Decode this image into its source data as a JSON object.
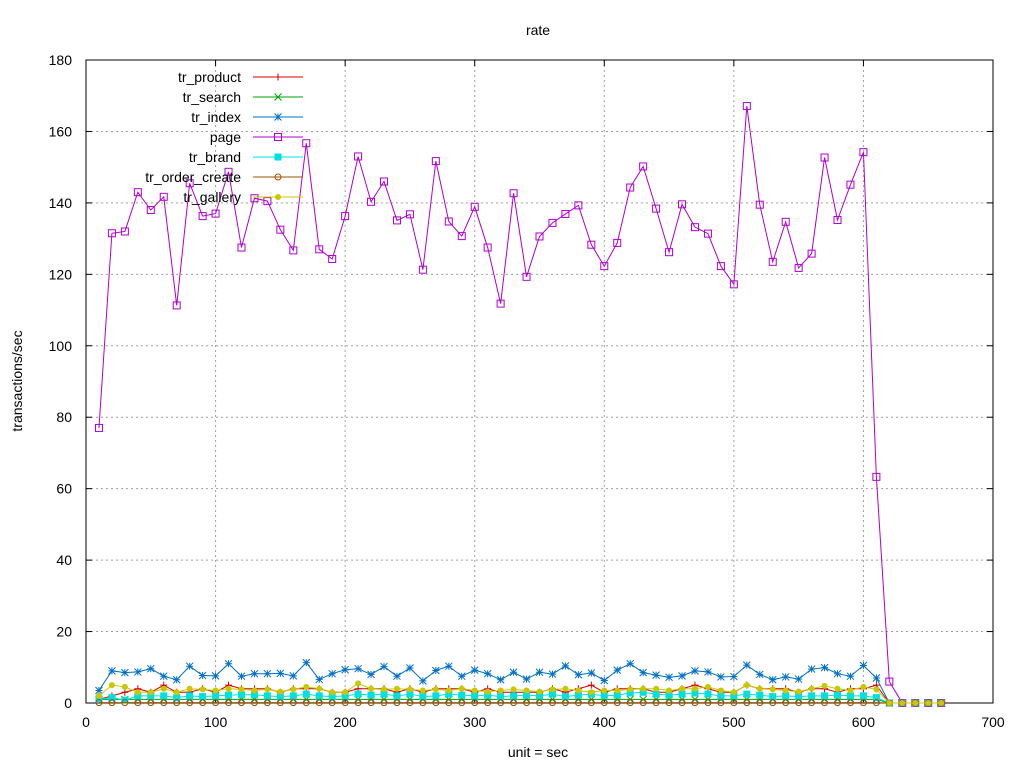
{
  "chart_data": {
    "type": "line",
    "title": "rate",
    "xlabel": "unit = sec",
    "ylabel": "transactions/sec",
    "xlim": [
      0,
      700
    ],
    "ylim": [
      0,
      180
    ],
    "xticks": [
      0,
      100,
      200,
      300,
      400,
      500,
      600,
      700
    ],
    "yticks": [
      0,
      20,
      40,
      60,
      80,
      100,
      120,
      140,
      160,
      180
    ],
    "grid": true,
    "legend_position": "top-left",
    "x": [
      10,
      20,
      30,
      40,
      50,
      60,
      70,
      80,
      90,
      100,
      110,
      120,
      130,
      140,
      150,
      160,
      170,
      180,
      190,
      200,
      210,
      220,
      230,
      240,
      250,
      260,
      270,
      280,
      290,
      300,
      310,
      320,
      330,
      340,
      350,
      360,
      370,
      380,
      390,
      400,
      410,
      420,
      430,
      440,
      450,
      460,
      470,
      480,
      490,
      500,
      510,
      520,
      530,
      540,
      550,
      560,
      570,
      580,
      590,
      600,
      610,
      620,
      630,
      640,
      650,
      660
    ],
    "series": [
      {
        "name": "tr_product",
        "color": "#d40000",
        "marker": "plus",
        "values": [
          1,
          2,
          3,
          4,
          3,
          5,
          3,
          3,
          4,
          3,
          5,
          4,
          4,
          4,
          3,
          4,
          4,
          4,
          3,
          3,
          4,
          4,
          4,
          3,
          4,
          3,
          4,
          4,
          4,
          3,
          4,
          3,
          3,
          3,
          3,
          4,
          3,
          4,
          5,
          3,
          4,
          4,
          4,
          3,
          3,
          4,
          5,
          4,
          3,
          3,
          5,
          4,
          4,
          4,
          3,
          4,
          4,
          3,
          4,
          4,
          5,
          0,
          0,
          0,
          0,
          0
        ]
      },
      {
        "name": "tr_search",
        "color": "#00a000",
        "marker": "cross",
        "values": [
          1,
          1,
          1,
          1,
          1,
          1,
          1,
          1,
          1,
          1,
          1,
          1,
          1,
          1,
          1,
          1,
          1,
          1,
          1,
          1,
          1,
          1,
          1,
          1,
          1,
          1,
          1,
          1,
          1,
          1,
          1,
          1,
          1,
          1,
          1,
          1,
          1,
          1,
          1,
          1,
          1,
          1,
          1,
          1,
          1,
          1,
          1,
          1,
          1,
          1,
          1,
          1,
          1,
          1,
          1,
          1,
          1,
          1,
          1,
          1,
          1,
          0,
          0,
          0,
          0,
          0
        ]
      },
      {
        "name": "tr_index",
        "color": "#0070c8",
        "marker": "star",
        "values": [
          3.5,
          9,
          8.5,
          8.7,
          9.6,
          7.5,
          6.5,
          10.3,
          7.7,
          7.6,
          11,
          7.5,
          8.2,
          8.2,
          8.3,
          7.6,
          11.3,
          6.6,
          8.2,
          9.3,
          9.6,
          8,
          10.2,
          7.5,
          9.8,
          6.2,
          9.1,
          10.3,
          7.5,
          9.2,
          8.2,
          6.5,
          8.6,
          6.7,
          8.6,
          8.1,
          10.4,
          7.9,
          8.4,
          6.3,
          9.2,
          11,
          8.5,
          7.8,
          7.2,
          7.6,
          9,
          8.7,
          7.3,
          7.4,
          10.6,
          8,
          6.5,
          7.3,
          6.7,
          9.5,
          9.9,
          8.2,
          7.5,
          10.5,
          7,
          0,
          0,
          0,
          0,
          0
        ]
      },
      {
        "name": "page",
        "color": "#b000d0",
        "marker": "square-open",
        "values": [
          77,
          131.5,
          132,
          143,
          138,
          141.7,
          111.3,
          145.5,
          136.3,
          137,
          148.7,
          127.5,
          141.3,
          140.5,
          132.5,
          126.7,
          156.7,
          127,
          124.3,
          136.3,
          153,
          140.3,
          146,
          135.1,
          136.8,
          121.3,
          151.7,
          134.8,
          130.7,
          138.9,
          127.5,
          111.8,
          142.7,
          119.3,
          130.6,
          134.4,
          136.9,
          139.3,
          128.3,
          122.3,
          128.8,
          144.3,
          150.2,
          138.4,
          126.2,
          139.6,
          133.2,
          131.4,
          122.3,
          117.2,
          167.1,
          139.5,
          123.5,
          134.7,
          121.8,
          125.8,
          152.7,
          135.2,
          145.1,
          154.2,
          63.3,
          6,
          0,
          0,
          0,
          0
        ]
      },
      {
        "name": "tr_brand",
        "color": "#00e0e0",
        "marker": "square-filled",
        "values": [
          1,
          1.5,
          0.8,
          2,
          2,
          2,
          1.5,
          2,
          1.8,
          2,
          2.2,
          2.3,
          2.3,
          2,
          1.8,
          2,
          2.5,
          2,
          1.8,
          2,
          2.5,
          2.2,
          2.5,
          2,
          2.5,
          1.8,
          2,
          2.5,
          2.2,
          2,
          2.2,
          1.8,
          2,
          2.2,
          2,
          2.5,
          1.8,
          2.2,
          2.5,
          2,
          2.2,
          2.8,
          3,
          2.5,
          2.2,
          2.5,
          2.8,
          2.5,
          2,
          2,
          2.5,
          2.2,
          1.8,
          2,
          1.8,
          2,
          2,
          2.2,
          2,
          2,
          1.5,
          0,
          0,
          0,
          0,
          0
        ]
      },
      {
        "name": "tr_order_create",
        "color": "#a05000",
        "marker": "circle-open",
        "values": [
          0.1,
          0.1,
          0.1,
          0.1,
          0.1,
          0.1,
          0.1,
          0.1,
          0.1,
          0.1,
          0.1,
          0.1,
          0.1,
          0.1,
          0.1,
          0.1,
          0.1,
          0.1,
          0.1,
          0.1,
          0.1,
          0.1,
          0.1,
          0.1,
          0.1,
          0.1,
          0.1,
          0.1,
          0.1,
          0.1,
          0.1,
          0.1,
          0.1,
          0.1,
          0.1,
          0.1,
          0.1,
          0.1,
          0.1,
          0.1,
          0.1,
          0.1,
          0.1,
          0.1,
          0.1,
          0.1,
          0.1,
          0.1,
          0.1,
          0.1,
          0.1,
          0.1,
          0.1,
          0.1,
          0.1,
          0.1,
          0.1,
          0.1,
          0.1,
          0.1,
          0.1,
          0,
          0,
          0,
          0,
          0
        ]
      },
      {
        "name": "tr_gallery",
        "color": "#c8c800",
        "marker": "circle-filled",
        "values": [
          2,
          5,
          4.5,
          3,
          3,
          4,
          3,
          4,
          3.8,
          3.5,
          4,
          3.8,
          3.5,
          3.8,
          3.2,
          3.8,
          4.5,
          4,
          3,
          3,
          5.5,
          4,
          3.8,
          4,
          3.8,
          3.5,
          3.8,
          3.5,
          4,
          3.5,
          3.2,
          3.5,
          3.8,
          3.5,
          3.2,
          3.8,
          4,
          3.5,
          3,
          3.5,
          3.5,
          3.8,
          4,
          4,
          3.5,
          4,
          4,
          4.5,
          3.5,
          3,
          5,
          4,
          3.8,
          3.5,
          3.2,
          4,
          4.8,
          4,
          3.5,
          4.5,
          3.8,
          0,
          0,
          0,
          0,
          0
        ]
      }
    ]
  }
}
